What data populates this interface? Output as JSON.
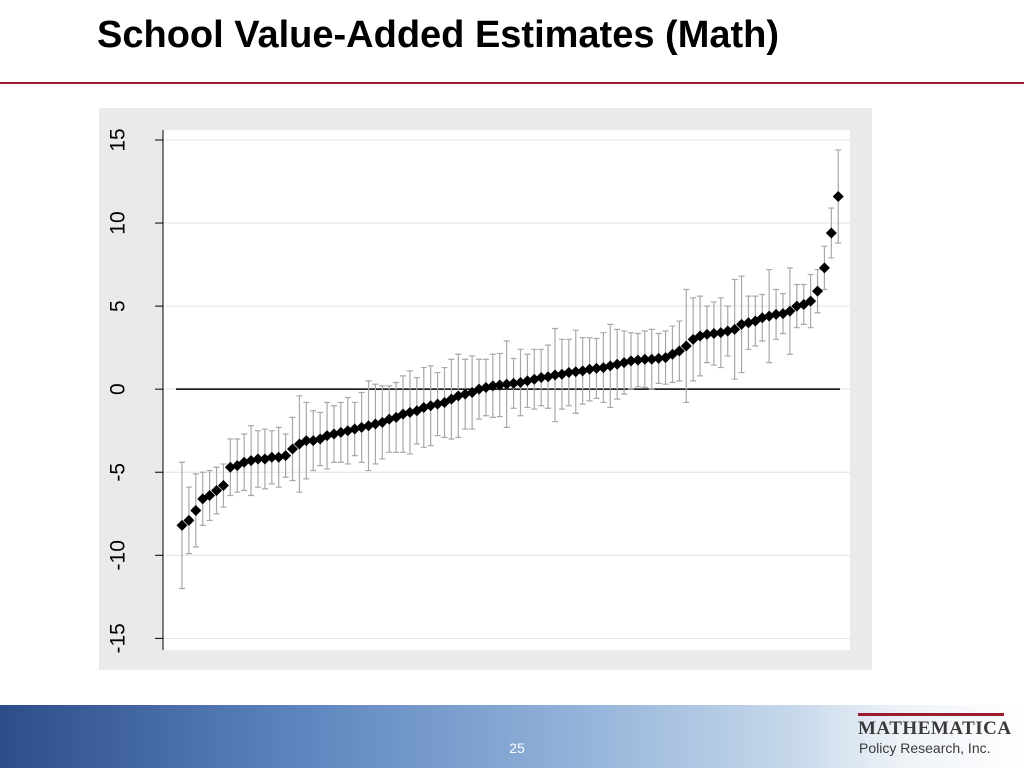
{
  "chart_data": {
    "type": "scatter",
    "title": "School Value-Added Estimates (Math)",
    "series": [
      {
        "color": "#000000",
        "error_color": "#a8a8a8",
        "x": [
          1,
          2,
          3,
          4,
          5,
          6,
          7,
          8,
          9,
          10,
          11,
          12,
          13,
          14,
          15,
          16,
          17,
          18,
          19,
          20,
          21,
          22,
          23,
          24,
          25,
          26,
          27,
          28,
          29,
          30,
          31,
          32,
          33,
          34,
          35,
          36,
          37,
          38,
          39,
          40,
          41,
          42,
          43,
          44,
          45,
          46,
          47,
          48,
          49,
          50,
          51,
          52,
          53,
          54,
          55,
          56,
          57,
          58,
          59,
          60,
          61,
          62,
          63,
          64,
          65,
          66,
          67,
          68,
          69,
          70,
          71,
          72,
          73,
          74,
          75,
          76,
          77,
          78,
          79,
          80,
          81,
          82,
          83,
          84,
          85,
          86,
          87,
          88,
          89,
          90,
          91,
          92,
          93,
          94,
          95,
          96
        ],
        "values": [
          -8.2,
          -7.9,
          -7.3,
          -6.6,
          -6.4,
          -6.1,
          -5.8,
          -4.7,
          -4.6,
          -4.4,
          -4.3,
          -4.2,
          -4.2,
          -4.1,
          -4.1,
          -4.0,
          -3.6,
          -3.3,
          -3.1,
          -3.1,
          -3.0,
          -2.8,
          -2.7,
          -2.6,
          -2.5,
          -2.4,
          -2.3,
          -2.2,
          -2.1,
          -2.0,
          -1.8,
          -1.7,
          -1.5,
          -1.4,
          -1.3,
          -1.1,
          -1.0,
          -0.9,
          -0.8,
          -0.6,
          -0.4,
          -0.3,
          -0.2,
          0.0,
          0.1,
          0.2,
          0.25,
          0.3,
          0.35,
          0.4,
          0.5,
          0.6,
          0.7,
          0.75,
          0.85,
          0.9,
          1.0,
          1.05,
          1.1,
          1.2,
          1.25,
          1.3,
          1.4,
          1.5,
          1.6,
          1.7,
          1.75,
          1.8,
          1.8,
          1.85,
          1.9,
          2.1,
          2.3,
          2.6,
          3.0,
          3.2,
          3.3,
          3.35,
          3.4,
          3.5,
          3.6,
          3.9,
          4.0,
          4.1,
          4.3,
          4.4,
          4.5,
          4.55,
          4.7,
          5.0,
          5.1,
          5.3,
          5.9,
          7.3,
          9.4,
          11.6
        ],
        "errors": [
          3.8,
          2.0,
          2.2,
          1.6,
          1.5,
          1.4,
          1.3,
          1.7,
          1.6,
          1.7,
          2.1,
          1.7,
          1.8,
          1.6,
          1.8,
          1.3,
          1.9,
          2.9,
          2.3,
          1.8,
          1.6,
          2.0,
          1.7,
          1.8,
          2.0,
          1.6,
          2.1,
          2.7,
          2.4,
          2.2,
          2.0,
          2.1,
          2.3,
          2.5,
          2.0,
          2.4,
          2.4,
          1.9,
          2.1,
          2.4,
          2.5,
          2.1,
          2.2,
          1.8,
          1.7,
          1.9,
          1.9,
          2.6,
          1.5,
          2.0,
          1.6,
          1.8,
          1.7,
          1.9,
          2.8,
          2.1,
          2.0,
          2.5,
          2.0,
          1.9,
          1.8,
          2.1,
          2.5,
          2.1,
          1.9,
          1.7,
          1.6,
          1.7,
          1.8,
          1.5,
          1.6,
          1.7,
          1.8,
          3.4,
          2.5,
          2.4,
          1.7,
          1.9,
          2.1,
          1.5,
          3.0,
          2.9,
          1.6,
          1.5,
          1.4,
          2.8,
          1.5,
          1.2,
          2.6,
          1.3,
          1.2,
          1.6,
          1.3,
          1.3,
          1.5,
          2.8
        ]
      }
    ],
    "reference_line": 0,
    "xlim": [
      -1.75,
      97.7
    ],
    "ylim": [
      -15.7,
      15.6
    ],
    "yticks": [
      -15,
      -10,
      -5,
      0,
      5,
      10,
      15
    ],
    "grid": true
  },
  "footer": {
    "page_number": "25",
    "logo_name": "MATHEMATICA",
    "logo_tagline": "Policy Research, Inc."
  }
}
